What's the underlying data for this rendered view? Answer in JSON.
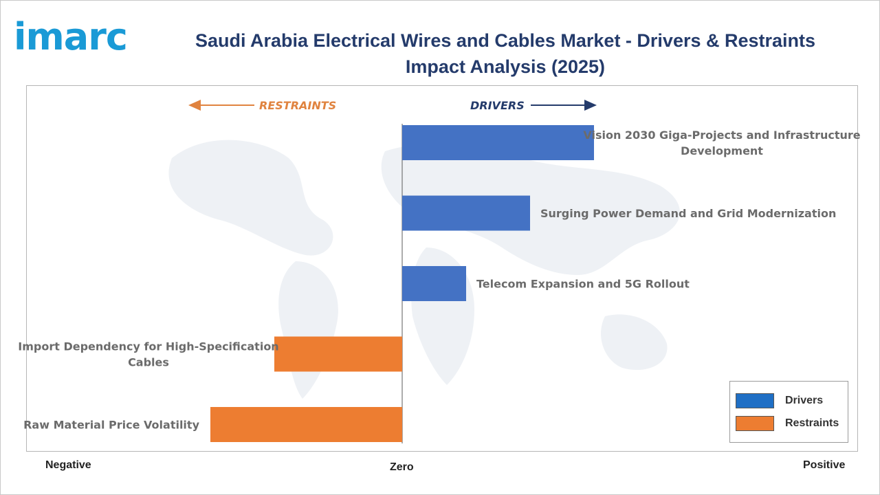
{
  "brand": {
    "name": "imarc"
  },
  "chart_data": {
    "type": "bar",
    "orientation": "horizontal",
    "title": "Saudi Arabia Electrical Wires and Cables Market - Drivers & Restraints Impact Analysis (2025)",
    "direction_labels": {
      "left": "RESTRAINTS",
      "right": "DRIVERS"
    },
    "axis_labels": {
      "negative": "Negative",
      "zero": "Zero",
      "positive": "Positive"
    },
    "categories": [
      [
        "Vision 2030 Giga-Projects and Infrastructure",
        "Development"
      ],
      [
        "Surging Power Demand and Grid Modernization"
      ],
      [
        "Telecom Expansion and 5G Rollout"
      ],
      [
        "Import Dependency for High-Specification",
        "Cables"
      ],
      [
        "Raw Material Price Volatility"
      ]
    ],
    "values": [
      3.0,
      2.0,
      1.0,
      -2.0,
      -3.0
    ],
    "xlim": [
      -6.0,
      6.8
    ],
    "series": [
      {
        "name": "Drivers",
        "color": "#4472c4"
      },
      {
        "name": "Restraints",
        "color": "#ed7d31"
      }
    ],
    "legend_position": "bottom-right",
    "grid": false
  }
}
